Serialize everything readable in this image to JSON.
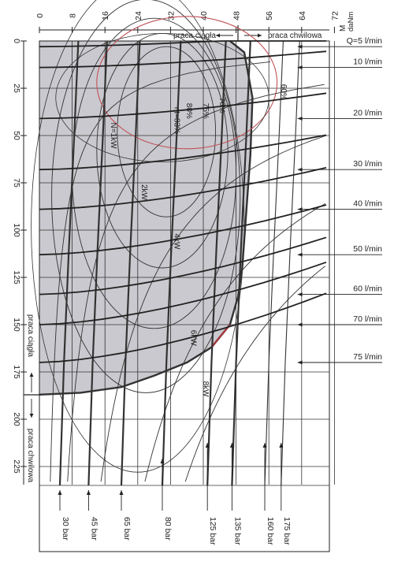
{
  "chart_data": {
    "type": "line",
    "top_axis": {
      "unit_label_1": "M",
      "unit_label_2": "daNm",
      "ticks": [
        0,
        8,
        16,
        24,
        32,
        40,
        48,
        56,
        64,
        72
      ],
      "range": [
        0,
        72
      ]
    },
    "left_axis": {
      "ticks": [
        0,
        25,
        50,
        75,
        100,
        125,
        150,
        175,
        200,
        225
      ],
      "range": [
        0,
        235
      ]
    },
    "mode_labels": {
      "continuous": "praca ciągła",
      "intermittent": "praca chwilowa"
    },
    "flow_lines": [
      {
        "label": "Q=5 l/min",
        "rpm": 3
      },
      {
        "label": "10 l/min",
        "rpm": 14
      },
      {
        "label": "20 l/min",
        "rpm": 41
      },
      {
        "label": "30 l/min",
        "rpm": 68
      },
      {
        "label": "40 l/min",
        "rpm": 89
      },
      {
        "label": "50 l/min",
        "rpm": 113
      },
      {
        "label": "60 l/min",
        "rpm": 134
      },
      {
        "label": "70 l/min",
        "rpm": 150
      },
      {
        "label": "75 l/min",
        "rpm": 170
      }
    ],
    "pressure_lines": [
      {
        "label": "30 bar",
        "M": 5
      },
      {
        "label": "45 bar",
        "M": 12
      },
      {
        "label": "65 bar",
        "M": 20
      },
      {
        "label": "80 bar",
        "M": 30
      },
      {
        "label": "125 bar",
        "M": 41
      },
      {
        "label": "135 bar",
        "M": 47
      },
      {
        "label": "160 bar",
        "M": 55
      },
      {
        "label": "175 bar",
        "M": 59
      }
    ],
    "power_labels": [
      {
        "label": "N=1kW",
        "M": 17.5,
        "rpm": 50
      },
      {
        "label": "2kW",
        "M": 25,
        "rpm": 80
      },
      {
        "label": "4kW",
        "M": 33,
        "rpm": 106
      },
      {
        "label": "6kW",
        "M": 37,
        "rpm": 157
      },
      {
        "label": "8kW",
        "M": 40,
        "rpm": 184
      }
    ],
    "efficiency_labels": [
      {
        "label": "ηt=83%",
        "M": 33,
        "rpm": 42
      },
      {
        "label": "80%",
        "M": 36,
        "rpm": 37
      },
      {
        "label": "75%",
        "M": 40,
        "rpm": 37
      },
      {
        "label": "70%",
        "M": 44,
        "rpm": 34
      },
      {
        "label": "60%",
        "M": 59,
        "rpm": 27
      }
    ],
    "regions": {
      "continuous_area": "shaded",
      "continuous_max_rpm": 185
    },
    "colors": {
      "shaded_region": "#c9c9cf",
      "grid": "#333333",
      "flow_line": "#222222",
      "efficiency_curve": "#333333"
    },
    "grid": true
  }
}
